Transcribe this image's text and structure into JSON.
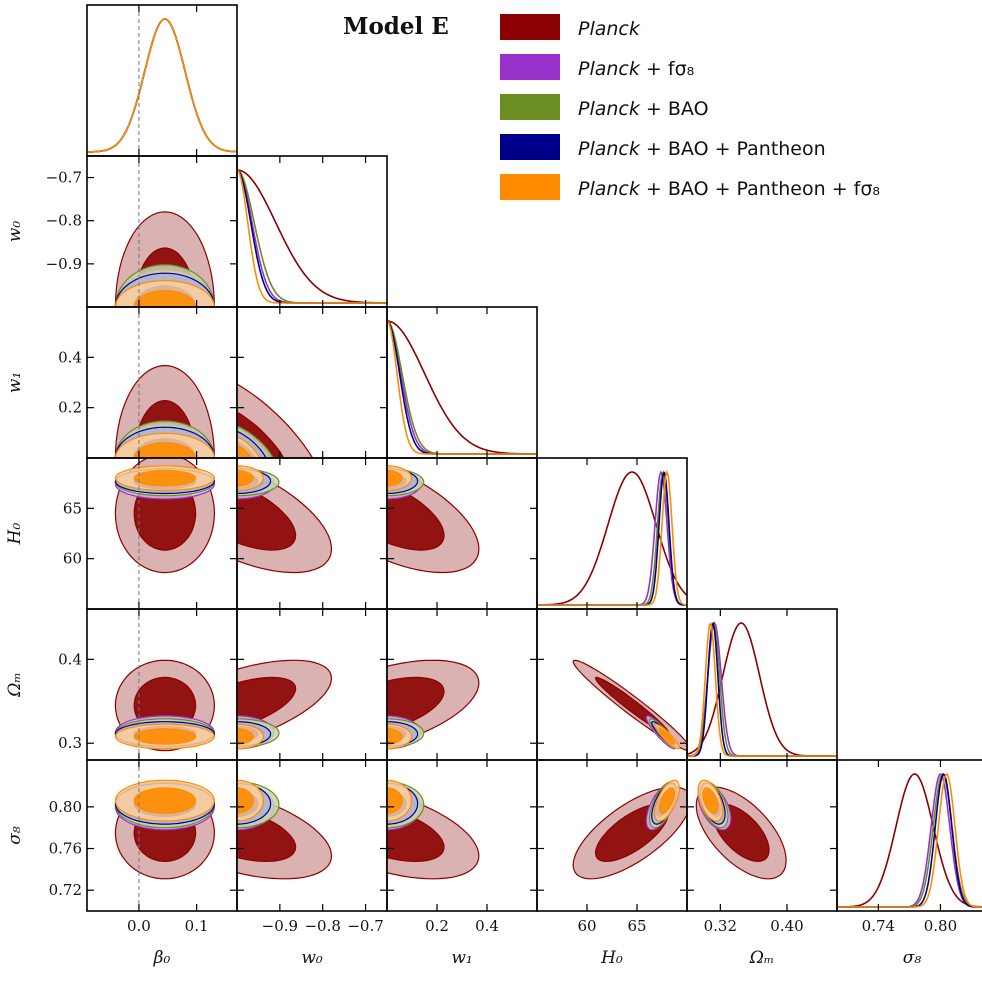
{
  "chart_data": {
    "type": "triangle-corner",
    "title": "Model E",
    "parameters": [
      {
        "label": "β₀",
        "range": [
          -0.09,
          0.17
        ],
        "ticks": [
          0.0,
          0.1
        ],
        "tick_labels": [
          "0.0",
          "0.1"
        ]
      },
      {
        "label": "w₀",
        "range": [
          -1.0,
          -0.65
        ],
        "ticks": [
          -0.9,
          -0.8,
          -0.7
        ],
        "tick_labels": [
          "−0.9",
          "−0.8",
          "−0.7"
        ]
      },
      {
        "label": "w₁",
        "range": [
          0.0,
          0.6
        ],
        "ticks": [
          0.2,
          0.4
        ],
        "tick_labels": [
          "0.2",
          "0.4"
        ]
      },
      {
        "label": "H₀",
        "range": [
          55,
          70
        ],
        "ticks": [
          60,
          65
        ],
        "tick_labels": [
          "60",
          "65"
        ]
      },
      {
        "label": "Ωₘ",
        "range": [
          0.28,
          0.46
        ],
        "ticks": [
          0.32,
          0.4
        ],
        "tick_labels": [
          "0.32",
          "0.40"
        ]
      },
      {
        "label": "σ₈",
        "range": [
          0.7,
          0.845
        ],
        "ticks": [
          0.74,
          0.8
        ],
        "tick_labels": [
          "0.74",
          "0.80"
        ]
      }
    ],
    "row_ticks": {
      "1": {
        "ticks": [
          -0.9,
          -0.8,
          -0.7
        ],
        "tick_labels": [
          "−0.9",
          "−0.8",
          "−0.7"
        ]
      },
      "2": {
        "ticks": [
          0.2,
          0.4
        ],
        "tick_labels": [
          "0.2",
          "0.4"
        ]
      },
      "3": {
        "ticks": [
          60,
          65
        ],
        "tick_labels": [
          "60",
          "65"
        ]
      },
      "4": {
        "ticks": [
          0.3,
          0.4
        ],
        "tick_labels": [
          "0.3",
          "0.4"
        ]
      },
      "5": {
        "ticks": [
          0.72,
          0.76,
          0.8
        ],
        "tick_labels": [
          "0.72",
          "0.76",
          "0.80"
        ]
      }
    },
    "reference_line": {
      "parameter": "β₀",
      "value": 0.0
    },
    "series": [
      {
        "name": "Planck",
        "name_italic": "Planck",
        "name_rest": "",
        "color": "#8b0000",
        "light": "#d4a5a5",
        "mean": [
          0.045,
          -1.0,
          0.0,
          64.5,
          0.345,
          0.775
        ],
        "sd": [
          0.035,
          0.09,
          0.15,
          2.4,
          0.022,
          0.018
        ],
        "onesided": [
          false,
          true,
          true,
          false,
          false,
          false
        ],
        "corr": {
          "0,1": 0.0,
          "0,2": 0.0,
          "0,3": 0.0,
          "0,4": 0.0,
          "0,5": 0.0,
          "1,2": -0.6,
          "1,3": -0.6,
          "1,4": 0.6,
          "1,5": -0.5,
          "2,3": -0.6,
          "2,4": 0.5,
          "2,5": -0.5,
          "3,4": -0.97,
          "3,5": 0.7,
          "4,5": -0.6
        }
      },
      {
        "name": "Planck + fσ8",
        "name_italic": "Planck",
        "name_rest": " + fσ₈",
        "color": "#9932cc",
        "light": "#dcc0ee",
        "mean": [
          0.045,
          -1.0,
          0.0,
          67.4,
          0.313,
          0.8
        ],
        "sd": [
          0.035,
          0.035,
          0.055,
          0.6,
          0.008,
          0.009
        ],
        "onesided": [
          false,
          true,
          true,
          false,
          false,
          false
        ],
        "corr": {
          "3,4": -0.9,
          "3,5": 0.6,
          "4,5": -0.5,
          "1,2": -0.5
        }
      },
      {
        "name": "Planck + BAO",
        "name_italic": "Planck",
        "name_rest": " + BAO",
        "color": "#6b8e23",
        "light": "#c8d6a8",
        "mean": [
          0.045,
          -1.0,
          0.0,
          67.6,
          0.312,
          0.802
        ],
        "sd": [
          0.035,
          0.04,
          0.06,
          0.55,
          0.007,
          0.009
        ],
        "onesided": [
          false,
          true,
          true,
          false,
          false,
          false
        ],
        "corr": {
          "3,4": -0.9,
          "3,5": 0.6,
          "4,5": -0.5,
          "1,2": -0.5
        }
      },
      {
        "name": "Planck + BAO + Pantheon",
        "name_italic": "Planck",
        "name_rest": " + BAO + Pantheon",
        "color": "#00008b",
        "light": "#b0b0d8",
        "mean": [
          0.045,
          -1.0,
          0.0,
          67.7,
          0.311,
          0.803
        ],
        "sd": [
          0.035,
          0.032,
          0.05,
          0.5,
          0.006,
          0.008
        ],
        "onesided": [
          false,
          true,
          true,
          false,
          false,
          false
        ],
        "corr": {
          "3,4": -0.9,
          "3,5": 0.6,
          "4,5": -0.5,
          "1,2": -0.5
        }
      },
      {
        "name": "Planck + BAO + Pantheon + fσ8",
        "name_italic": "Planck",
        "name_rest": " + BAO + Pantheon + fσ₈",
        "color": "#ff8c00",
        "light": "#ffd09a",
        "mean": [
          0.045,
          -1.0,
          0.0,
          68.0,
          0.308,
          0.806
        ],
        "sd": [
          0.035,
          0.025,
          0.04,
          0.5,
          0.006,
          0.008
        ],
        "onesided": [
          false,
          true,
          true,
          false,
          false,
          false
        ],
        "corr": {
          "3,4": -0.9,
          "3,5": 0.6,
          "4,5": -0.5,
          "1,2": -0.5
        }
      }
    ]
  }
}
